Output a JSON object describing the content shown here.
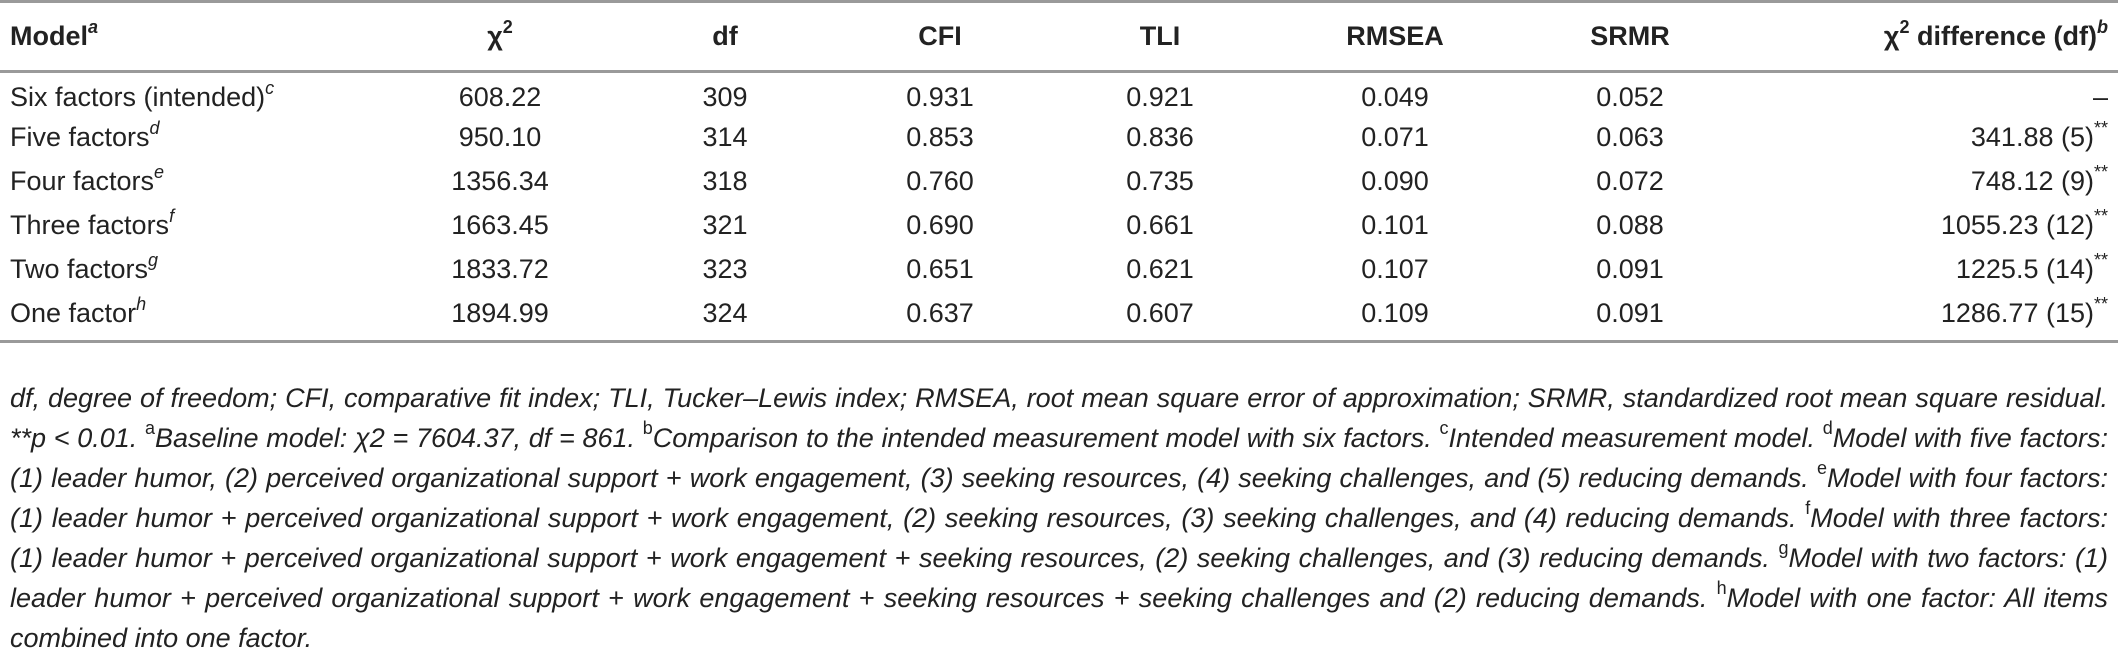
{
  "table": {
    "headers": [
      {
        "text": "Model",
        "sup": "a"
      },
      {
        "text": "χ",
        "sup": "2"
      },
      {
        "text": "df",
        "sup": ""
      },
      {
        "text": "CFI",
        "sup": ""
      },
      {
        "text": "TLI",
        "sup": ""
      },
      {
        "text": "RMSEA",
        "sup": ""
      },
      {
        "text": "SRMR",
        "sup": ""
      },
      {
        "text": "χ2 difference (df)",
        "sup": "b"
      }
    ],
    "chi_header": {
      "chi": "χ",
      "two": "2",
      "rest": " difference (df)",
      "sup": "b"
    },
    "rows": [
      {
        "model": "Six factors (intended)",
        "sup": "c",
        "chi2": "608.22",
        "df": "309",
        "cfi": "0.931",
        "tli": "0.921",
        "rmsea": "0.049",
        "srmr": "0.052",
        "diff": "–",
        "sig": ""
      },
      {
        "model": "Five factors",
        "sup": "d",
        "chi2": "950.10",
        "df": "314",
        "cfi": "0.853",
        "tli": "0.836",
        "rmsea": "0.071",
        "srmr": "0.063",
        "diff": "341.88 (5)",
        "sig": "**"
      },
      {
        "model": "Four factors",
        "sup": "e",
        "chi2": "1356.34",
        "df": "318",
        "cfi": "0.760",
        "tli": "0.735",
        "rmsea": "0.090",
        "srmr": "0.072",
        "diff": "748.12 (9)",
        "sig": "**"
      },
      {
        "model": "Three factors",
        "sup": "f",
        "chi2": "1663.45",
        "df": "321",
        "cfi": "0.690",
        "tli": "0.661",
        "rmsea": "0.101",
        "srmr": "0.088",
        "diff": "1055.23 (12)",
        "sig": "**"
      },
      {
        "model": "Two factors",
        "sup": "g",
        "chi2": "1833.72",
        "df": "323",
        "cfi": "0.651",
        "tli": "0.621",
        "rmsea": "0.107",
        "srmr": "0.091",
        "diff": "1225.5 (14)",
        "sig": "**"
      },
      {
        "model": "One factor",
        "sup": "h",
        "chi2": "1894.99",
        "df": "324",
        "cfi": "0.637",
        "tli": "0.607",
        "rmsea": "0.109",
        "srmr": "0.091",
        "diff": "1286.77 (15)",
        "sig": "**"
      }
    ]
  },
  "note": {
    "intro": "df, degree of freedom; CFI, comparative fit index; TLI, Tucker–Lewis index; RMSEA, root mean square error of approximation; SRMR, standardized root mean square residual. **p < 0.01. ",
    "a": {
      "sup": "a",
      "text": "Baseline model: χ2 = 7604.37, df = 861. "
    },
    "b": {
      "sup": "b",
      "text": "Comparison to the intended measurement model with six factors. "
    },
    "c": {
      "sup": "c",
      "text": "Intended measurement model. "
    },
    "d": {
      "sup": "d",
      "text": "Model with five factors: (1) leader humor, (2) perceived organizational support + work engagement, (3) seeking resources, (4) seeking challenges, and (5) reducing demands. "
    },
    "e": {
      "sup": "e",
      "text": "Model with four factors: (1) leader humor + perceived organizational support + work engagement, (2) seeking resources, (3) seeking challenges, and (4) reducing demands. "
    },
    "f": {
      "sup": "f",
      "text": "Model with three factors: (1) leader humor + perceived organizational support + work engagement + seeking resources, (2) seeking challenges, and (3) reducing demands. "
    },
    "g": {
      "sup": "g",
      "text": "Model with two factors: (1) leader humor + perceived organizational support + work engagement + seeking resources + seeking challenges and (2) reducing demands. "
    },
    "h": {
      "sup": "h",
      "text": "Model with one factor: All items combined into one factor."
    }
  }
}
